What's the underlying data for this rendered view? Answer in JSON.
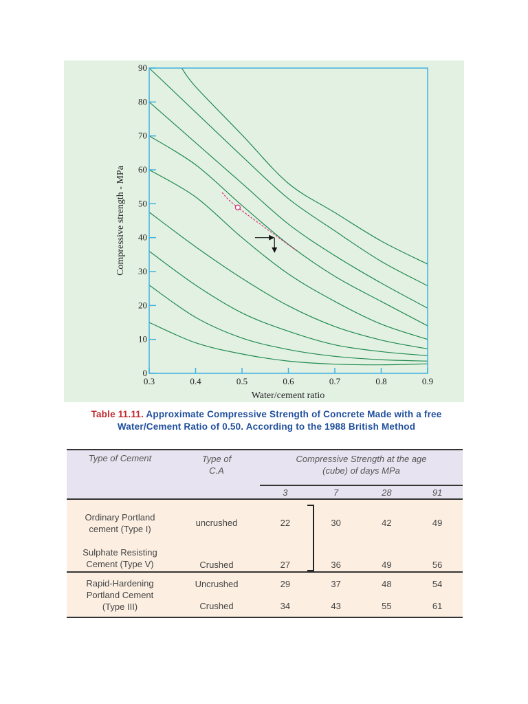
{
  "chart_data": {
    "type": "line",
    "xlabel": "Water/cement ratio",
    "ylabel": "Compressive strength - MPa",
    "xlim": [
      0.3,
      0.9
    ],
    "ylim": [
      0,
      90
    ],
    "xticks": [
      "0.3",
      "0.4",
      "0.5",
      "0.6",
      "0.7",
      "0.8",
      "0.9"
    ],
    "yticks": [
      "0",
      "10",
      "20",
      "30",
      "40",
      "50",
      "60",
      "70",
      "80",
      "90"
    ],
    "grid": false,
    "colors": {
      "curves": "#1e8a4e",
      "background": "#e3f1e3",
      "axis": "#3fb1e0",
      "highlight": "#d6246e",
      "arrow": "#111111"
    },
    "series": [
      {
        "points": [
          [
            0.37,
            90
          ],
          [
            0.4,
            84.5
          ],
          [
            0.5,
            70.3
          ],
          [
            0.6,
            56
          ],
          [
            0.7,
            47.4
          ],
          [
            0.8,
            39
          ],
          [
            0.9,
            32.2
          ]
        ]
      },
      {
        "points": [
          [
            0.3,
            90
          ],
          [
            0.4,
            77
          ],
          [
            0.5,
            64
          ],
          [
            0.6,
            51.5
          ],
          [
            0.7,
            42
          ],
          [
            0.8,
            33
          ],
          [
            0.9,
            25.8
          ]
        ]
      },
      {
        "points": [
          [
            0.3,
            80
          ],
          [
            0.4,
            68
          ],
          [
            0.5,
            56
          ],
          [
            0.6,
            44
          ],
          [
            0.7,
            34.7
          ],
          [
            0.8,
            26.6
          ],
          [
            0.9,
            19.2
          ]
        ]
      },
      {
        "points": [
          [
            0.3,
            70
          ],
          [
            0.4,
            61.5
          ],
          [
            0.5,
            49.5
          ],
          [
            0.6,
            38
          ],
          [
            0.7,
            28.6
          ],
          [
            0.8,
            21.2
          ],
          [
            0.9,
            14
          ]
        ]
      },
      {
        "points": [
          [
            0.3,
            60
          ],
          [
            0.4,
            52
          ],
          [
            0.5,
            40
          ],
          [
            0.6,
            29.3
          ],
          [
            0.7,
            21.2
          ],
          [
            0.8,
            14.5
          ],
          [
            0.9,
            10
          ]
        ]
      },
      {
        "points": [
          [
            0.3,
            47.5
          ],
          [
            0.4,
            37.3
          ],
          [
            0.5,
            28
          ],
          [
            0.6,
            19.9
          ],
          [
            0.7,
            13.8
          ],
          [
            0.8,
            9.8
          ],
          [
            0.9,
            7.2
          ]
        ]
      },
      {
        "points": [
          [
            0.3,
            36
          ],
          [
            0.4,
            26
          ],
          [
            0.5,
            17.8
          ],
          [
            0.6,
            12.4
          ],
          [
            0.7,
            8.4
          ],
          [
            0.8,
            6.4
          ],
          [
            0.9,
            5.2
          ]
        ]
      },
      {
        "points": [
          [
            0.3,
            26
          ],
          [
            0.4,
            16.5
          ],
          [
            0.5,
            10.4
          ],
          [
            0.6,
            7
          ],
          [
            0.7,
            5
          ],
          [
            0.8,
            4
          ],
          [
            0.9,
            3.6
          ]
        ]
      },
      {
        "points": [
          [
            0.3,
            15
          ],
          [
            0.4,
            9
          ],
          [
            0.5,
            5.7
          ],
          [
            0.6,
            3.6
          ],
          [
            0.7,
            2.7
          ],
          [
            0.8,
            2.5
          ],
          [
            0.9,
            2.8
          ]
        ]
      }
    ],
    "highlight_line": [
      [
        0.457,
        53.3
      ],
      [
        0.491,
        48.9
      ],
      [
        0.618,
        36.1
      ]
    ],
    "highlight_point": [
      0.491,
      48.9
    ],
    "arrow_horizontal": [
      [
        0.528,
        40
      ],
      [
        0.57,
        40
      ]
    ],
    "arrow_vertical": [
      [
        0.57,
        40
      ],
      [
        0.57,
        35.5
      ]
    ]
  },
  "caption": {
    "number": "Table 11.11.",
    "text": "Approximate Compressive Strength of Concrete Made with a  free Water/Cement Ratio of 0.50. According to the 1988 British Method"
  },
  "table": {
    "headers": {
      "cement": "Type of Cement",
      "ca": "Type of C.A",
      "strength": "Compressive Strength at the age (cube) of days MPa",
      "ages": [
        "3",
        "7",
        "28",
        "91"
      ]
    },
    "groups": [
      {
        "cement_lines": [
          "Ordinary Portland cement (Type I)",
          "Sulphate Resisting Cement (Type V)"
        ],
        "rows": [
          {
            "ca": "uncrushed",
            "values": [
              "22",
              "30",
              "42",
              "49"
            ]
          },
          {
            "ca": "Crushed",
            "values": [
              "27",
              "36",
              "49",
              "56"
            ]
          }
        ]
      },
      {
        "cement_lines": [
          "Rapid-Hardening Portland Cement (Type III)"
        ],
        "rows": [
          {
            "ca": "Uncrushed",
            "values": [
              "29",
              "37",
              "48",
              "54"
            ]
          },
          {
            "ca": "Crushed",
            "values": [
              "34",
              "43",
              "55",
              "61"
            ]
          }
        ]
      }
    ]
  }
}
